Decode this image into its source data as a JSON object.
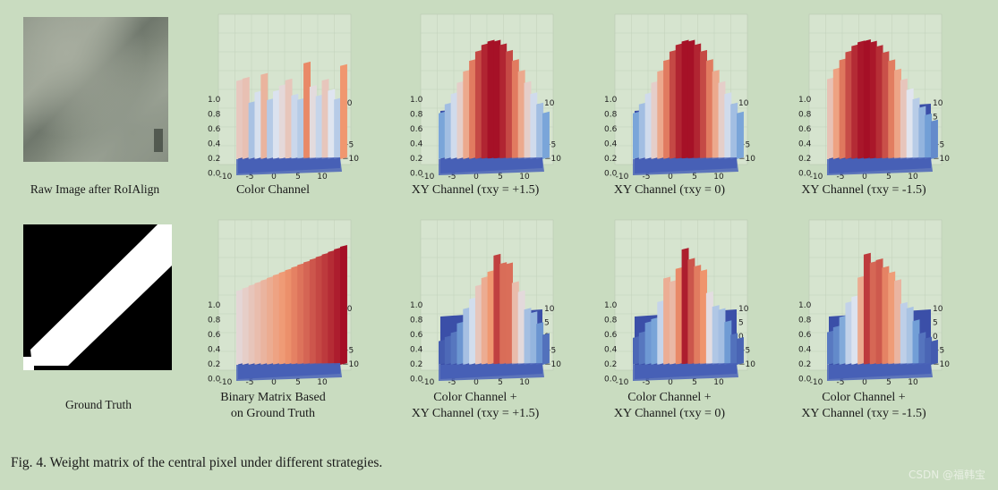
{
  "left_column": {
    "raw_caption": "Raw Image after RoIAlign",
    "gt_caption": "Ground Truth"
  },
  "axes": {
    "z_ticks": [
      "1.0",
      "0.8",
      "0.6",
      "0.4",
      "0.2",
      "0.0"
    ],
    "x_ticks": [
      "-10",
      "-5",
      "0",
      "5",
      "10"
    ],
    "y_ticks": [
      "-10",
      "-5",
      "0",
      "5",
      "10"
    ]
  },
  "row1": [
    {
      "caption_line1": "Color Channel",
      "caption_line2": ""
    },
    {
      "caption_line1": "XY Channel (τxy = +1.5)",
      "caption_line2": ""
    },
    {
      "caption_line1": "XY Channel (τxy = 0)",
      "caption_line2": ""
    },
    {
      "caption_line1": "XY Channel (τxy = -1.5)",
      "caption_line2": ""
    }
  ],
  "row2": [
    {
      "caption_line1": "Binary Matrix Based",
      "caption_line2": "on Ground Truth"
    },
    {
      "caption_line1": "Color Channel +",
      "caption_line2": "XY Channel (τxy = +1.5)"
    },
    {
      "caption_line1": "Color Channel +",
      "caption_line2": "XY Channel (τxy = 0)"
    },
    {
      "caption_line1": "Color Channel +",
      "caption_line2": "XY Channel (τxy = -1.5)"
    }
  ],
  "figure_caption": "Fig. 4.    Weight matrix of the central pixel under different strategies.",
  "watermark": "CSDN @福韩宝",
  "colors": {
    "background": "#c9dcc0",
    "low": "#3b4fa8",
    "high": "#a50f26"
  }
}
